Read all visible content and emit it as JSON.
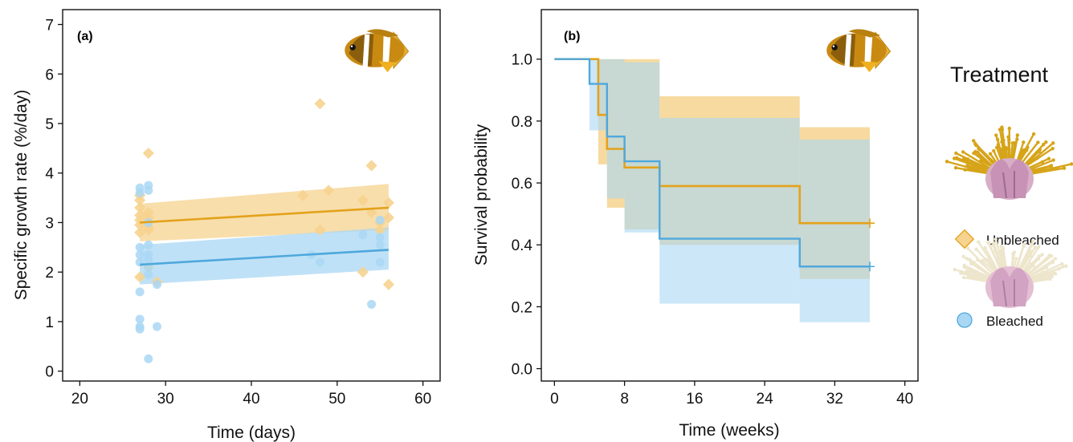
{
  "colors": {
    "unbleached": "#E3A21A",
    "unbleached_fill": "#F6D38F",
    "bleached": "#4FA8DD",
    "bleached_fill": "#A9D7F4",
    "overlap_fill": "#C6CDB6"
  },
  "legend": {
    "title": "Treatment",
    "unbleached_label": "Unbleached",
    "bleached_label": "Bleached"
  },
  "chart_data": [
    {
      "type": "scatter",
      "panel_label": "(a)",
      "xlabel": "Time (days)",
      "ylabel": "Specific growth rate (%/day)",
      "xlim": [
        18,
        62
      ],
      "ylim": [
        -0.2,
        7.3
      ],
      "xticks": [
        20,
        30,
        40,
        50,
        60
      ],
      "yticks": [
        0,
        1,
        2,
        3,
        4,
        5,
        6,
        7
      ],
      "grid": false,
      "series": [
        {
          "name": "Unbleached",
          "points": [
            [
              27,
              3.15
            ],
            [
              27,
              3.05
            ],
            [
              27,
              2.95
            ],
            [
              27,
              2.8
            ],
            [
              27,
              3.3
            ],
            [
              27,
              3.45
            ],
            [
              27,
              1.9
            ],
            [
              27,
              3.55
            ],
            [
              28,
              4.4
            ],
            [
              28,
              3.2
            ],
            [
              28,
              3.1
            ],
            [
              28,
              2.9
            ],
            [
              28,
              2.85
            ],
            [
              28,
              2.1
            ],
            [
              29,
              1.8
            ],
            [
              46,
              3.55
            ],
            [
              48,
              5.4
            ],
            [
              48,
              2.85
            ],
            [
              49,
              3.65
            ],
            [
              53,
              3.45
            ],
            [
              53,
              2.0
            ],
            [
              54,
              4.15
            ],
            [
              54,
              3.2
            ],
            [
              55,
              3.0
            ],
            [
              55,
              2.85
            ],
            [
              56,
              3.4
            ],
            [
              56,
              3.1
            ],
            [
              56,
              1.75
            ]
          ],
          "fit": {
            "x": [
              27,
              56
            ],
            "y": [
              3.0,
              3.3
            ]
          },
          "ci_lower": [
            2.62,
            2.85
          ],
          "ci_upper": [
            3.38,
            3.78
          ]
        },
        {
          "name": "Bleached",
          "points": [
            [
              27,
              3.7
            ],
            [
              27,
              3.6
            ],
            [
              27,
              2.5
            ],
            [
              27,
              2.35
            ],
            [
              27,
              2.2
            ],
            [
              27,
              1.6
            ],
            [
              27,
              1.05
            ],
            [
              27,
              0.9
            ],
            [
              27,
              0.85
            ],
            [
              28,
              3.75
            ],
            [
              28,
              3.65
            ],
            [
              28,
              3.0
            ],
            [
              28,
              2.55
            ],
            [
              28,
              2.35
            ],
            [
              28,
              2.25
            ],
            [
              28,
              2.1
            ],
            [
              28,
              1.95
            ],
            [
              28,
              0.25
            ],
            [
              29,
              1.75
            ],
            [
              29,
              0.9
            ],
            [
              47,
              2.35
            ],
            [
              48,
              2.2
            ],
            [
              53,
              2.75
            ],
            [
              54,
              1.35
            ],
            [
              55,
              3.05
            ],
            [
              55,
              2.7
            ],
            [
              55,
              2.55
            ],
            [
              55,
              2.2
            ]
          ],
          "fit": {
            "x": [
              27,
              56
            ],
            "y": [
              2.15,
              2.45
            ]
          },
          "ci_lower": [
            1.75,
            2.05
          ],
          "ci_upper": [
            2.55,
            2.9
          ]
        }
      ]
    },
    {
      "type": "line",
      "panel_label": "(b)",
      "xlabel": "Time (weeks)",
      "ylabel": "Survival probability",
      "xlim": [
        -1.5,
        41.5
      ],
      "ylim": [
        -0.04,
        1.16
      ],
      "xticks": [
        0,
        8,
        16,
        24,
        32,
        40
      ],
      "yticks": [
        "0.0",
        "0.2",
        "0.4",
        "0.6",
        "0.8",
        "1.0"
      ],
      "grid": false,
      "series": [
        {
          "name": "Unbleached",
          "steps": [
            [
              0,
              1.0
            ],
            [
              5,
              0.82
            ],
            [
              6,
              0.71
            ],
            [
              8,
              0.65
            ],
            [
              12,
              0.59
            ],
            [
              28,
              0.47
            ],
            [
              36,
              0.47
            ]
          ],
          "ci": [
            [
              0,
              1.0,
              1.0
            ],
            [
              5,
              0.66,
              1.0
            ],
            [
              6,
              0.52,
              1.0
            ],
            [
              8,
              0.45,
              1.0
            ],
            [
              12,
              0.4,
              0.88
            ],
            [
              28,
              0.29,
              0.78
            ],
            [
              36,
              0.29,
              0.78
            ]
          ],
          "censor_x": 36
        },
        {
          "name": "Bleached",
          "steps": [
            [
              0,
              1.0
            ],
            [
              4,
              0.92
            ],
            [
              6,
              0.75
            ],
            [
              8,
              0.67
            ],
            [
              12,
              0.42
            ],
            [
              28,
              0.33
            ],
            [
              36,
              0.33
            ]
          ],
          "ci": [
            [
              0,
              1.0,
              1.0
            ],
            [
              4,
              0.77,
              1.0
            ],
            [
              6,
              0.55,
              1.0
            ],
            [
              8,
              0.44,
              0.99
            ],
            [
              12,
              0.21,
              0.81
            ],
            [
              28,
              0.15,
              0.74
            ],
            [
              36,
              0.15,
              0.74
            ]
          ],
          "censor_x": 36
        }
      ]
    }
  ]
}
